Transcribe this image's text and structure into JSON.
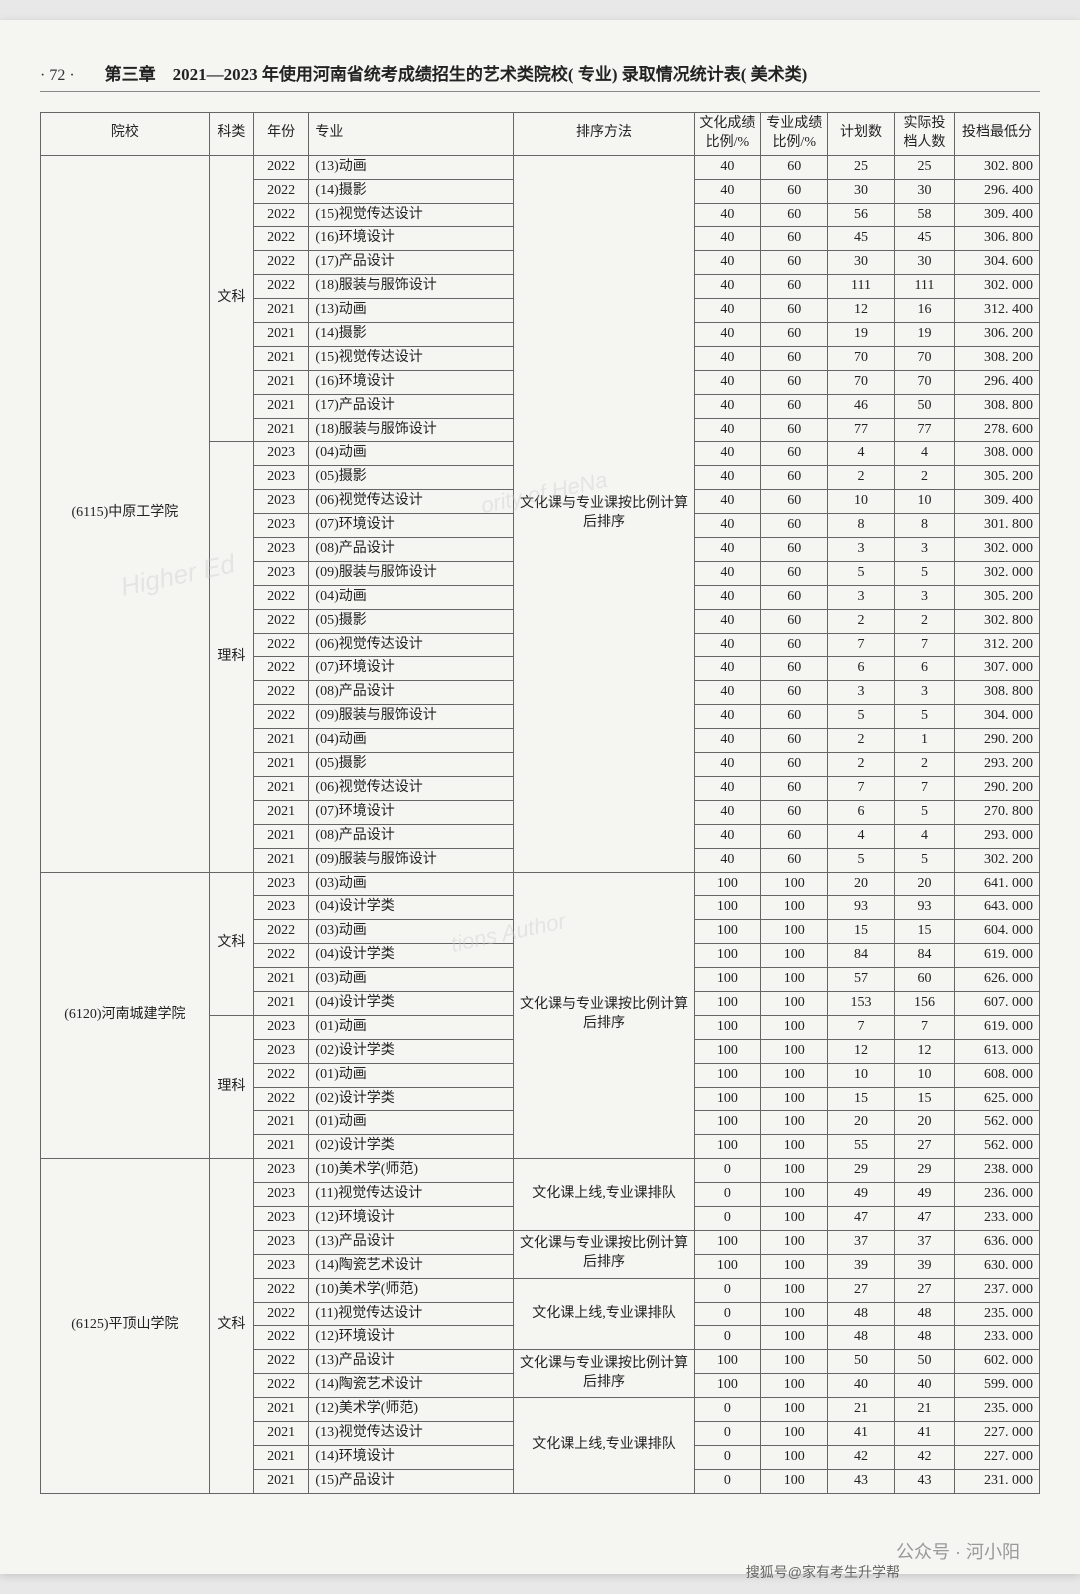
{
  "page_number": "· 72 ·",
  "chapter": "第三章　2021—2023 年使用河南省统考成绩招生的艺术类院校( 专业) 录取情况统计表( 美术类)",
  "headers": {
    "school": "院校",
    "category": "科类",
    "year": "年份",
    "major": "专业",
    "method": "排序方法",
    "ratio1": "文化成绩比例/%",
    "ratio2": "专业成绩比例/%",
    "plan": "计划数",
    "actual": "实际投档人数",
    "score": "投档最低分"
  },
  "watermarks": {
    "wm1": "Higher Ed",
    "wm2": "ority of HeNa",
    "wm3": "tions Author"
  },
  "footer1": "公众号 · 河小阳",
  "footer2": "搜狐号@家有考生升学帮",
  "schools": [
    {
      "name": "(6115)中原工学院",
      "method": "文化课与专业课按比例计算后排序",
      "groups": [
        {
          "category": "文科",
          "rows": [
            {
              "year": "2022",
              "major": "(13)动画",
              "r1": "40",
              "r2": "60",
              "plan": "25",
              "actual": "25",
              "score": "302. 800"
            },
            {
              "year": "2022",
              "major": "(14)摄影",
              "r1": "40",
              "r2": "60",
              "plan": "30",
              "actual": "30",
              "score": "296. 400"
            },
            {
              "year": "2022",
              "major": "(15)视觉传达设计",
              "r1": "40",
              "r2": "60",
              "plan": "56",
              "actual": "58",
              "score": "309. 400"
            },
            {
              "year": "2022",
              "major": "(16)环境设计",
              "r1": "40",
              "r2": "60",
              "plan": "45",
              "actual": "45",
              "score": "306. 800"
            },
            {
              "year": "2022",
              "major": "(17)产品设计",
              "r1": "40",
              "r2": "60",
              "plan": "30",
              "actual": "30",
              "score": "304. 600"
            },
            {
              "year": "2022",
              "major": "(18)服装与服饰设计",
              "r1": "40",
              "r2": "60",
              "plan": "111",
              "actual": "111",
              "score": "302. 000"
            },
            {
              "year": "2021",
              "major": "(13)动画",
              "r1": "40",
              "r2": "60",
              "plan": "12",
              "actual": "16",
              "score": "312. 400"
            },
            {
              "year": "2021",
              "major": "(14)摄影",
              "r1": "40",
              "r2": "60",
              "plan": "19",
              "actual": "19",
              "score": "306. 200"
            },
            {
              "year": "2021",
              "major": "(15)视觉传达设计",
              "r1": "40",
              "r2": "60",
              "plan": "70",
              "actual": "70",
              "score": "308. 200"
            },
            {
              "year": "2021",
              "major": "(16)环境设计",
              "r1": "40",
              "r2": "60",
              "plan": "70",
              "actual": "70",
              "score": "296. 400"
            },
            {
              "year": "2021",
              "major": "(17)产品设计",
              "r1": "40",
              "r2": "60",
              "plan": "46",
              "actual": "50",
              "score": "308. 800"
            },
            {
              "year": "2021",
              "major": "(18)服装与服饰设计",
              "r1": "40",
              "r2": "60",
              "plan": "77",
              "actual": "77",
              "score": "278. 600"
            }
          ]
        },
        {
          "category": "理科",
          "rows": [
            {
              "year": "2023",
              "major": "(04)动画",
              "r1": "40",
              "r2": "60",
              "plan": "4",
              "actual": "4",
              "score": "308. 000"
            },
            {
              "year": "2023",
              "major": "(05)摄影",
              "r1": "40",
              "r2": "60",
              "plan": "2",
              "actual": "2",
              "score": "305. 200"
            },
            {
              "year": "2023",
              "major": "(06)视觉传达设计",
              "r1": "40",
              "r2": "60",
              "plan": "10",
              "actual": "10",
              "score": "309. 400"
            },
            {
              "year": "2023",
              "major": "(07)环境设计",
              "r1": "40",
              "r2": "60",
              "plan": "8",
              "actual": "8",
              "score": "301. 800"
            },
            {
              "year": "2023",
              "major": "(08)产品设计",
              "r1": "40",
              "r2": "60",
              "plan": "3",
              "actual": "3",
              "score": "302. 000"
            },
            {
              "year": "2023",
              "major": "(09)服装与服饰设计",
              "r1": "40",
              "r2": "60",
              "plan": "5",
              "actual": "5",
              "score": "302. 000"
            },
            {
              "year": "2022",
              "major": "(04)动画",
              "r1": "40",
              "r2": "60",
              "plan": "3",
              "actual": "3",
              "score": "305. 200"
            },
            {
              "year": "2022",
              "major": "(05)摄影",
              "r1": "40",
              "r2": "60",
              "plan": "2",
              "actual": "2",
              "score": "302. 800"
            },
            {
              "year": "2022",
              "major": "(06)视觉传达设计",
              "r1": "40",
              "r2": "60",
              "plan": "7",
              "actual": "7",
              "score": "312. 200"
            },
            {
              "year": "2022",
              "major": "(07)环境设计",
              "r1": "40",
              "r2": "60",
              "plan": "6",
              "actual": "6",
              "score": "307. 000"
            },
            {
              "year": "2022",
              "major": "(08)产品设计",
              "r1": "40",
              "r2": "60",
              "plan": "3",
              "actual": "3",
              "score": "308. 800"
            },
            {
              "year": "2022",
              "major": "(09)服装与服饰设计",
              "r1": "40",
              "r2": "60",
              "plan": "5",
              "actual": "5",
              "score": "304. 000"
            },
            {
              "year": "2021",
              "major": "(04)动画",
              "r1": "40",
              "r2": "60",
              "plan": "2",
              "actual": "1",
              "score": "290. 200"
            },
            {
              "year": "2021",
              "major": "(05)摄影",
              "r1": "40",
              "r2": "60",
              "plan": "2",
              "actual": "2",
              "score": "293. 200"
            },
            {
              "year": "2021",
              "major": "(06)视觉传达设计",
              "r1": "40",
              "r2": "60",
              "plan": "7",
              "actual": "7",
              "score": "290. 200"
            },
            {
              "year": "2021",
              "major": "(07)环境设计",
              "r1": "40",
              "r2": "60",
              "plan": "6",
              "actual": "5",
              "score": "270. 800"
            },
            {
              "year": "2021",
              "major": "(08)产品设计",
              "r1": "40",
              "r2": "60",
              "plan": "4",
              "actual": "4",
              "score": "293. 000"
            },
            {
              "year": "2021",
              "major": "(09)服装与服饰设计",
              "r1": "40",
              "r2": "60",
              "plan": "5",
              "actual": "5",
              "score": "302. 200"
            }
          ]
        }
      ]
    },
    {
      "name": "(6120)河南城建学院",
      "method": "文化课与专业课按比例计算后排序",
      "groups": [
        {
          "category": "文科",
          "rows": [
            {
              "year": "2023",
              "major": "(03)动画",
              "r1": "100",
              "r2": "100",
              "plan": "20",
              "actual": "20",
              "score": "641. 000"
            },
            {
              "year": "2023",
              "major": "(04)设计学类",
              "r1": "100",
              "r2": "100",
              "plan": "93",
              "actual": "93",
              "score": "643. 000"
            },
            {
              "year": "2022",
              "major": "(03)动画",
              "r1": "100",
              "r2": "100",
              "plan": "15",
              "actual": "15",
              "score": "604. 000"
            },
            {
              "year": "2022",
              "major": "(04)设计学类",
              "r1": "100",
              "r2": "100",
              "plan": "84",
              "actual": "84",
              "score": "619. 000"
            },
            {
              "year": "2021",
              "major": "(03)动画",
              "r1": "100",
              "r2": "100",
              "plan": "57",
              "actual": "60",
              "score": "626. 000"
            },
            {
              "year": "2021",
              "major": "(04)设计学类",
              "r1": "100",
              "r2": "100",
              "plan": "153",
              "actual": "156",
              "score": "607. 000"
            }
          ]
        },
        {
          "category": "理科",
          "rows": [
            {
              "year": "2023",
              "major": "(01)动画",
              "r1": "100",
              "r2": "100",
              "plan": "7",
              "actual": "7",
              "score": "619. 000"
            },
            {
              "year": "2023",
              "major": "(02)设计学类",
              "r1": "100",
              "r2": "100",
              "plan": "12",
              "actual": "12",
              "score": "613. 000"
            },
            {
              "year": "2022",
              "major": "(01)动画",
              "r1": "100",
              "r2": "100",
              "plan": "10",
              "actual": "10",
              "score": "608. 000"
            },
            {
              "year": "2022",
              "major": "(02)设计学类",
              "r1": "100",
              "r2": "100",
              "plan": "15",
              "actual": "15",
              "score": "625. 000"
            },
            {
              "year": "2021",
              "major": "(01)动画",
              "r1": "100",
              "r2": "100",
              "plan": "20",
              "actual": "20",
              "score": "562. 000"
            },
            {
              "year": "2021",
              "major": "(02)设计学类",
              "r1": "100",
              "r2": "100",
              "plan": "55",
              "actual": "27",
              "score": "562. 000"
            }
          ]
        }
      ]
    },
    {
      "name": "(6125)平顶山学院",
      "groups": [
        {
          "category": "文科",
          "blocks": [
            {
              "method": "文化课上线,专业课排队",
              "rows": [
                {
                  "year": "2023",
                  "major": "(10)美术学(师范)",
                  "r1": "0",
                  "r2": "100",
                  "plan": "29",
                  "actual": "29",
                  "score": "238. 000"
                },
                {
                  "year": "2023",
                  "major": "(11)视觉传达设计",
                  "r1": "0",
                  "r2": "100",
                  "plan": "49",
                  "actual": "49",
                  "score": "236. 000"
                },
                {
                  "year": "2023",
                  "major": "(12)环境设计",
                  "r1": "0",
                  "r2": "100",
                  "plan": "47",
                  "actual": "47",
                  "score": "233. 000"
                }
              ]
            },
            {
              "method": "文化课与专业课按比例计算后排序",
              "rows": [
                {
                  "year": "2023",
                  "major": "(13)产品设计",
                  "r1": "100",
                  "r2": "100",
                  "plan": "37",
                  "actual": "37",
                  "score": "636. 000"
                },
                {
                  "year": "2023",
                  "major": "(14)陶瓷艺术设计",
                  "r1": "100",
                  "r2": "100",
                  "plan": "39",
                  "actual": "39",
                  "score": "630. 000"
                }
              ]
            },
            {
              "method": "文化课上线,专业课排队",
              "rows": [
                {
                  "year": "2022",
                  "major": "(10)美术学(师范)",
                  "r1": "0",
                  "r2": "100",
                  "plan": "27",
                  "actual": "27",
                  "score": "237. 000"
                },
                {
                  "year": "2022",
                  "major": "(11)视觉传达设计",
                  "r1": "0",
                  "r2": "100",
                  "plan": "48",
                  "actual": "48",
                  "score": "235. 000"
                },
                {
                  "year": "2022",
                  "major": "(12)环境设计",
                  "r1": "0",
                  "r2": "100",
                  "plan": "48",
                  "actual": "48",
                  "score": "233. 000"
                }
              ]
            },
            {
              "method": "文化课与专业课按比例计算后排序",
              "rows": [
                {
                  "year": "2022",
                  "major": "(13)产品设计",
                  "r1": "100",
                  "r2": "100",
                  "plan": "50",
                  "actual": "50",
                  "score": "602. 000"
                },
                {
                  "year": "2022",
                  "major": "(14)陶瓷艺术设计",
                  "r1": "100",
                  "r2": "100",
                  "plan": "40",
                  "actual": "40",
                  "score": "599. 000"
                }
              ]
            },
            {
              "method": "文化课上线,专业课排队",
              "rows": [
                {
                  "year": "2021",
                  "major": "(12)美术学(师范)",
                  "r1": "0",
                  "r2": "100",
                  "plan": "21",
                  "actual": "21",
                  "score": "235. 000"
                },
                {
                  "year": "2021",
                  "major": "(13)视觉传达设计",
                  "r1": "0",
                  "r2": "100",
                  "plan": "41",
                  "actual": "41",
                  "score": "227. 000"
                },
                {
                  "year": "2021",
                  "major": "(14)环境设计",
                  "r1": "0",
                  "r2": "100",
                  "plan": "42",
                  "actual": "42",
                  "score": "227. 000"
                },
                {
                  "year": "2021",
                  "major": "(15)产品设计",
                  "r1": "0",
                  "r2": "100",
                  "plan": "43",
                  "actual": "43",
                  "score": "231. 000"
                }
              ]
            }
          ]
        }
      ]
    }
  ]
}
